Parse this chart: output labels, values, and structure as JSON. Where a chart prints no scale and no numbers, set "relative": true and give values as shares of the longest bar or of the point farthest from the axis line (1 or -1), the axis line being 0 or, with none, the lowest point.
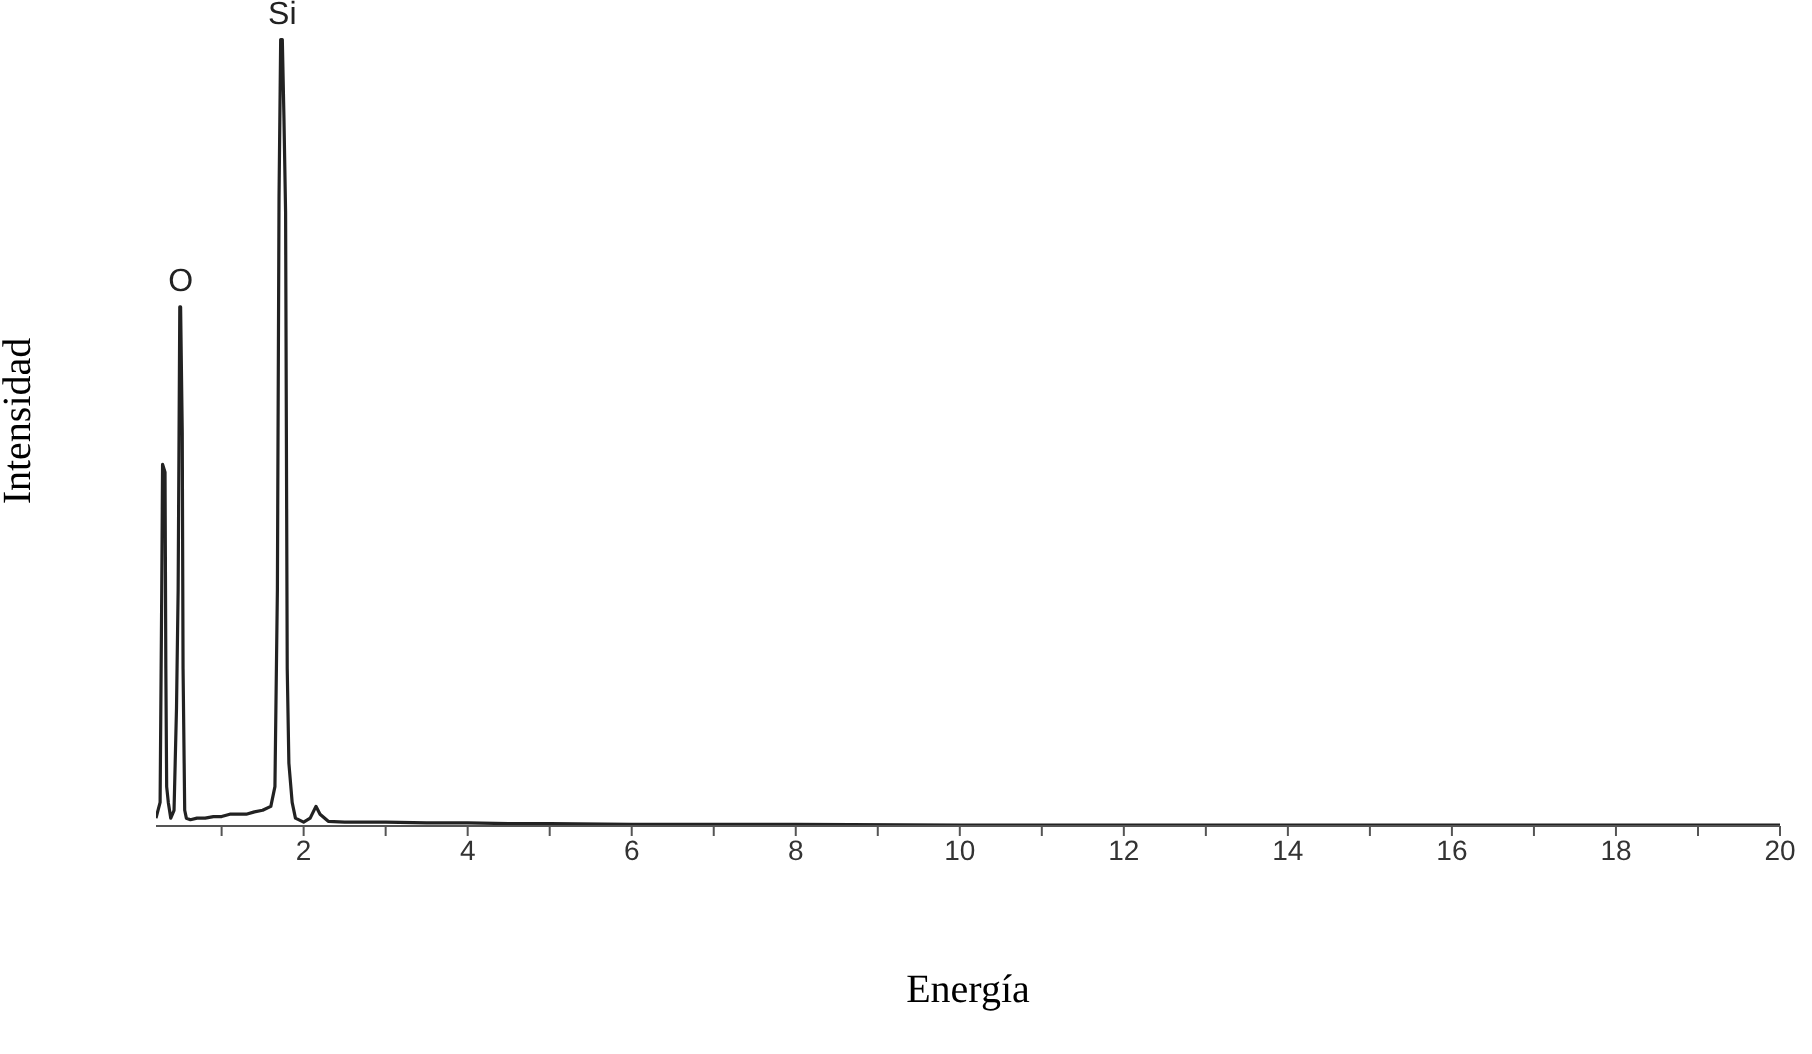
{
  "chart_data": {
    "type": "line",
    "xlabel": "Energía",
    "ylabel": "Intensidad",
    "relative": true,
    "marker": "none",
    "grid": false,
    "legend": false,
    "xlim": [
      0.2,
      20
    ],
    "xticks": [
      {
        "value": 1,
        "label": null
      },
      2,
      {
        "value": 3,
        "label": null
      },
      4,
      {
        "value": 5,
        "label": null
      },
      6,
      {
        "value": 7,
        "label": null
      },
      8,
      {
        "value": 9,
        "label": null
      },
      10,
      {
        "value": 11,
        "label": null
      },
      12,
      {
        "value": 13,
        "label": null
      },
      14,
      {
        "value": 15,
        "label": null
      },
      16,
      {
        "value": 17,
        "label": null
      },
      18,
      {
        "value": 19,
        "label": null
      },
      20
    ],
    "series": [
      {
        "color": "#222222",
        "x": [
          0.2,
          0.25,
          0.27,
          0.28,
          0.31,
          0.32,
          0.33,
          0.35,
          0.38,
          0.42,
          0.45,
          0.47,
          0.49,
          0.5,
          0.52,
          0.53,
          0.55,
          0.57,
          0.62,
          0.7,
          0.8,
          0.9,
          1.0,
          1.1,
          1.2,
          1.3,
          1.4,
          1.5,
          1.6,
          1.65,
          1.68,
          1.7,
          1.72,
          1.74,
          1.76,
          1.78,
          1.8,
          1.82,
          1.86,
          1.9,
          2.0,
          2.08,
          2.15,
          2.2,
          2.3,
          2.5,
          3.0,
          3.5,
          4.0,
          4.5,
          5.0,
          6.0,
          7.0,
          8.0,
          10.0,
          12.0,
          14.0,
          16.0,
          18.0,
          20.0
        ],
        "values": [
          0.01,
          0.03,
          0.3,
          0.46,
          0.45,
          0.2,
          0.05,
          0.03,
          0.01,
          0.02,
          0.15,
          0.3,
          0.66,
          0.66,
          0.5,
          0.2,
          0.02,
          0.01,
          0.008,
          0.01,
          0.01,
          0.012,
          0.012,
          0.015,
          0.015,
          0.015,
          0.018,
          0.02,
          0.025,
          0.05,
          0.3,
          0.8,
          1.0,
          1.0,
          0.9,
          0.78,
          0.2,
          0.08,
          0.03,
          0.01,
          0.005,
          0.01,
          0.025,
          0.015,
          0.006,
          0.005,
          0.005,
          0.004,
          0.004,
          0.003,
          0.003,
          0.002,
          0.002,
          0.002,
          0.001,
          0.001,
          0.001,
          0.001,
          0.001,
          0.001
        ]
      }
    ],
    "annotations": [
      {
        "text": "O",
        "x": 0.5,
        "y": 0.66
      },
      {
        "text": "Si",
        "x": 1.74,
        "y": 1.0
      }
    ]
  }
}
